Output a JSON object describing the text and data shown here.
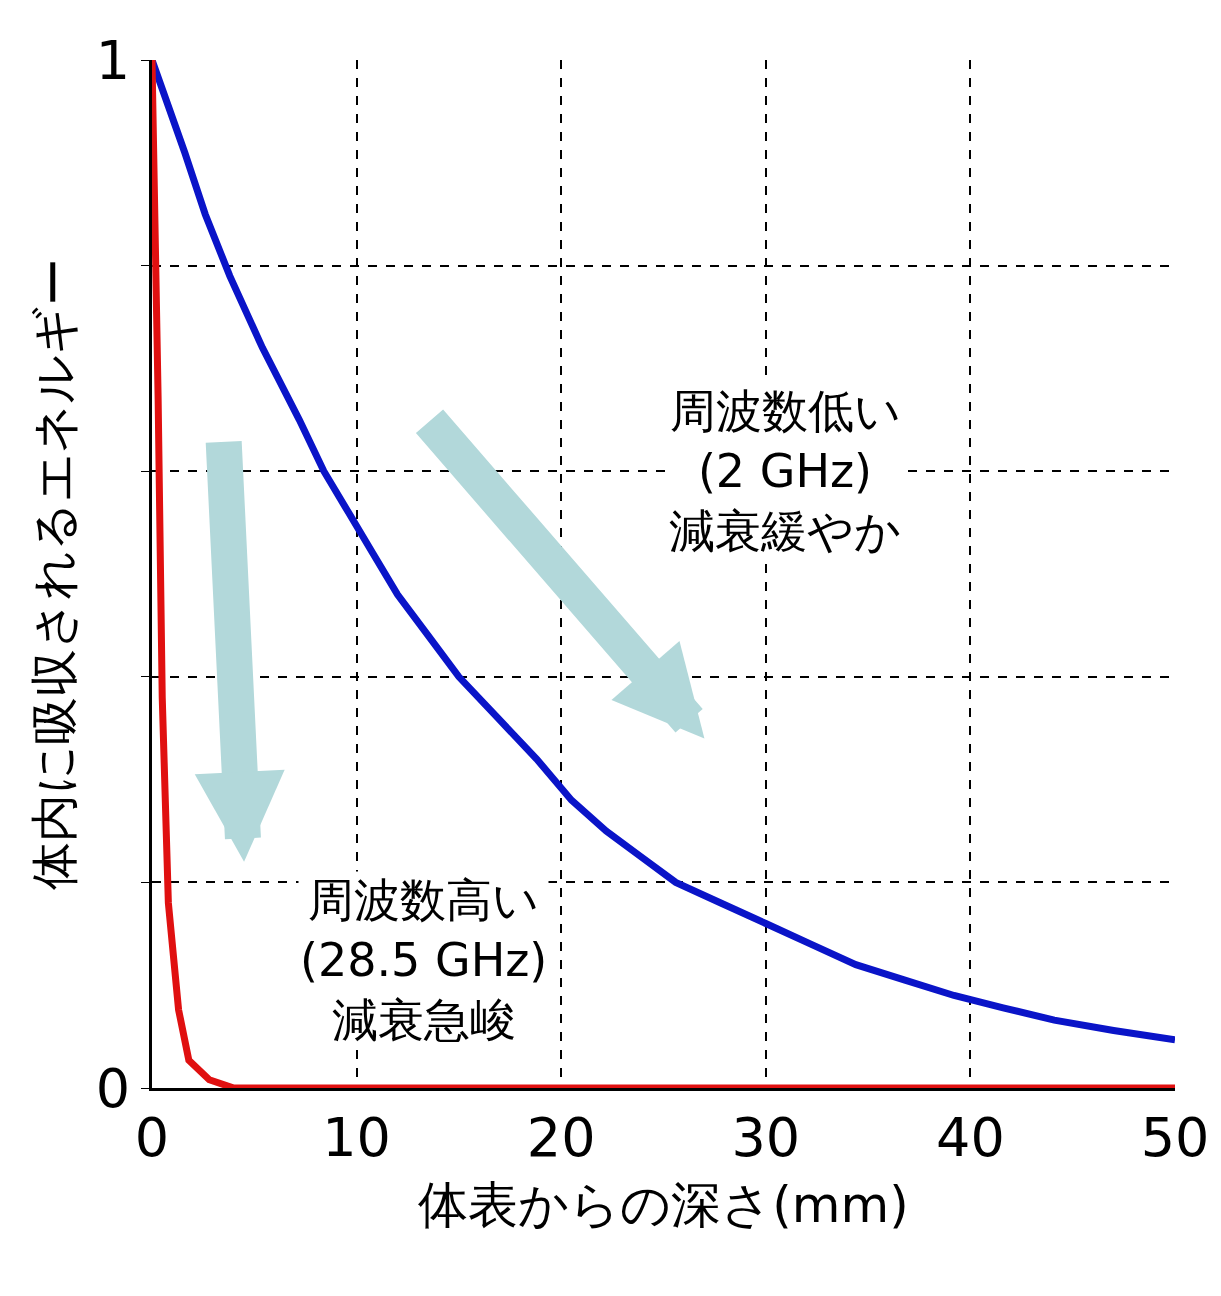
{
  "chart_data": {
    "type": "line",
    "xlabel": "体表からの深さ(mm)",
    "ylabel": "体内に吸収されるエネルギー",
    "xlim": [
      0,
      50
    ],
    "xticks": [
      0,
      10,
      20,
      30,
      40,
      50
    ],
    "ylim": [
      0,
      1
    ],
    "yticks": [
      0,
      {
        "value": 0.2,
        "label": null
      },
      {
        "value": 0.4,
        "label": null
      },
      {
        "value": 0.6,
        "label": null
      },
      {
        "value": 0.8,
        "label": null
      },
      1
    ],
    "grid": true,
    "marker": "none",
    "line_style": "solid",
    "series": [
      {
        "color": "#0a14c8",
        "x": [
          0,
          0.8,
          1.6,
          2.6,
          3.8,
          5.4,
          7.2,
          8.4,
          9.6,
          10.8,
          12.0,
          13.5,
          15.0,
          16.9,
          18.8,
          20.5,
          22.2,
          23.9,
          25.6,
          27.8,
          30,
          32.2,
          34.4,
          36.8,
          39.2,
          41.6,
          44.1,
          47,
          50
        ],
        "values": [
          1,
          0.955,
          0.91,
          0.85,
          0.79,
          0.72,
          0.65,
          0.6,
          0.56,
          0.52,
          0.48,
          0.44,
          0.4,
          0.36,
          0.32,
          0.28,
          0.25,
          0.225,
          0.2,
          0.18,
          0.16,
          0.14,
          0.12,
          0.105,
          0.09,
          0.078,
          0.066,
          0.056,
          0.047
        ]
      },
      {
        "color": "#e01010",
        "x": [
          0,
          0.3,
          0.5,
          0.8,
          1.3,
          1.8,
          2.8,
          4,
          50
        ],
        "values": [
          1,
          0.67,
          0.38,
          0.18,
          0.076,
          0.027,
          0.008,
          0,
          0
        ]
      }
    ],
    "annotations": [
      "周波数低い\n(2 GHz)\n減衰緩やか",
      "周波数高い\n(28.5 GHz)\n減衰急峻"
    ]
  }
}
